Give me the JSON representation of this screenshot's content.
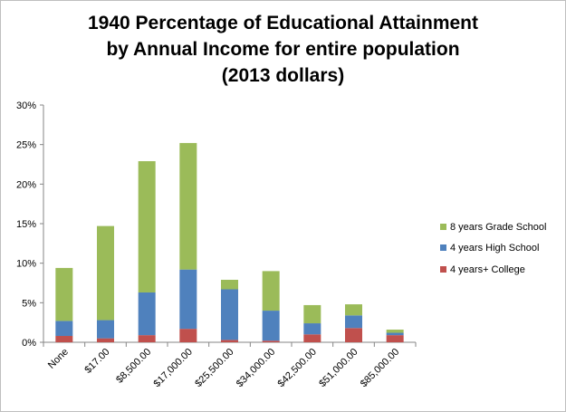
{
  "chart_data": {
    "type": "bar",
    "stacked": true,
    "title_lines": [
      "1940 Percentage of Educational Attainment",
      "by Annual  Income for entire population",
      "(2013 dollars)"
    ],
    "categories": [
      "None",
      "$17.00",
      "$8,500.00",
      "$17,000.00",
      "$25,500.00",
      "$34,000.00",
      "$42,500.00",
      "$51,000.00",
      "$85,000.00"
    ],
    "series": [
      {
        "name": "4 years+ College",
        "color": "#c0504d",
        "values": [
          0.8,
          0.5,
          0.9,
          1.7,
          0.3,
          0.2,
          1.0,
          1.8,
          0.9
        ]
      },
      {
        "name": "4 years High School",
        "color": "#4f81bd",
        "values": [
          1.9,
          2.3,
          5.4,
          7.5,
          6.4,
          3.8,
          1.4,
          1.6,
          0.3
        ]
      },
      {
        "name": "8 years Grade School",
        "color": "#9bbb59",
        "values": [
          6.7,
          11.9,
          16.6,
          16.0,
          1.2,
          5.0,
          2.3,
          1.4,
          0.4
        ]
      }
    ],
    "legend_order": [
      "8 years Grade School",
      "4 years High School",
      "4 years+ College"
    ],
    "y_ticks": [
      "0%",
      "5%",
      "10%",
      "15%",
      "20%",
      "25%",
      "30%"
    ],
    "ylim": [
      0,
      30
    ],
    "y_step": 5,
    "grid": false,
    "legend_position": "right"
  }
}
